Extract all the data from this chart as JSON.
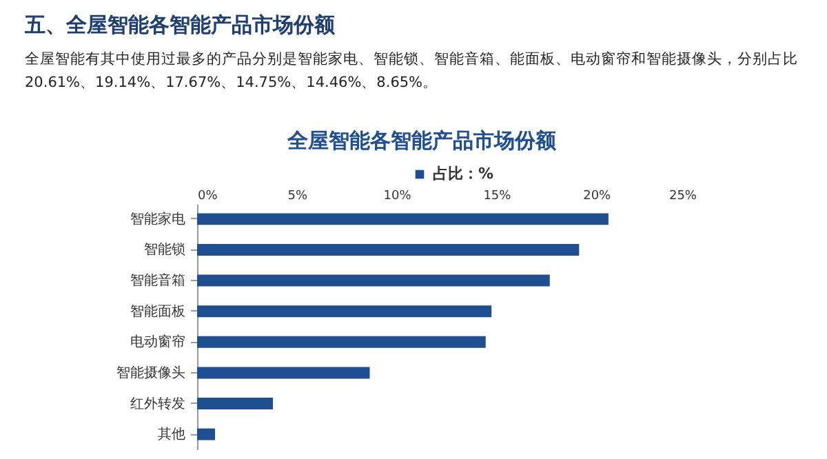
{
  "chart_data": {
    "type": "bar",
    "orientation": "horizontal",
    "title": "全屋智能各智能产品市场份额",
    "annotations": [
      "五、全屋智能各智能产品市场份额",
      "全屋智能有其中使用过最多的产品分别是智能家电、智能锁、智能音箱、能面板、电动窗帘和智能摄像头，分别占比",
      "20.61%、19.14%、17.67%、14.75%、14.46%、8.65%。"
    ],
    "categories": [
      "智能家电",
      "智能锁",
      "智能音箱",
      "智能面板",
      "电动窗帘",
      "智能摄像头",
      "红外转发",
      "其他"
    ],
    "series": [
      {
        "name": "占比：%",
        "color": "#1f4e91",
        "values": [
          20.61,
          19.14,
          17.67,
          14.75,
          14.46,
          8.65,
          3.8,
          0.9
        ]
      }
    ],
    "xlim": [
      0,
      25
    ],
    "xticks": [
      {
        "value": 0,
        "label": "0%"
      },
      {
        "value": 5,
        "label": "5%"
      },
      {
        "value": 10,
        "label": "10%"
      },
      {
        "value": 15,
        "label": "15%"
      },
      {
        "value": 20,
        "label": "20%"
      },
      {
        "value": 25,
        "label": "25%"
      }
    ],
    "grid": false,
    "legend": "top"
  }
}
